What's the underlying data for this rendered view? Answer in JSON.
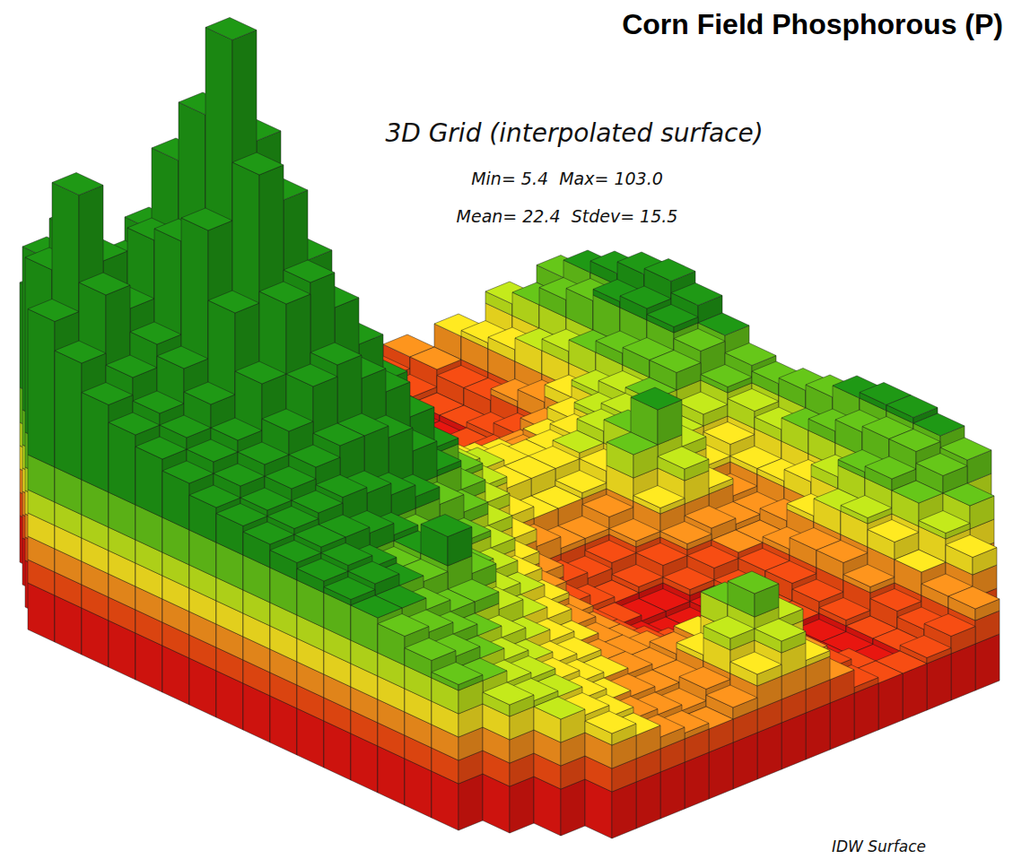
{
  "chart_data": {
    "type": "bar3d",
    "title": "Corn Field Phosphorous (P)",
    "subtitle": "3D Grid (interpolated surface)",
    "annotations": [
      "Min= 5.4  Max= 103.0",
      "Mean= 22.4  Stdev= 15.5",
      "IDW Surface"
    ],
    "zlim": [
      0,
      110
    ],
    "tick_labels": false,
    "color_scale": {
      "breaks": [
        8,
        12,
        16,
        20,
        24,
        30
      ],
      "colors": [
        "#e0150f",
        "#ee4a12",
        "#f5901c",
        "#f7e220",
        "#bde21a",
        "#62c018",
        "#1e9414"
      ]
    },
    "values": [
      [
        null,
        null,
        null,
        48,
        45,
        42,
        40,
        36,
        33,
        30,
        26,
        22,
        17,
        13,
        11,
        10,
        9,
        10,
        12,
        null,
        null,
        null
      ],
      [
        null,
        null,
        58,
        55,
        50,
        46,
        44,
        40,
        35,
        31,
        27,
        22,
        16,
        12,
        10,
        9,
        8,
        9,
        12,
        16,
        null,
        null
      ],
      [
        null,
        60,
        65,
        58,
        55,
        52,
        48,
        42,
        37,
        32,
        27,
        21,
        15,
        11,
        9,
        8,
        7,
        8,
        11,
        17,
        22,
        null
      ],
      [
        55,
        75,
        62,
        60,
        64,
        60,
        54,
        46,
        39,
        33,
        27,
        20,
        14,
        10,
        8,
        7,
        7,
        8,
        11,
        18,
        24,
        27
      ],
      [
        50,
        60,
        56,
        66,
        78,
        72,
        62,
        50,
        41,
        34,
        27,
        20,
        14,
        10,
        8,
        7,
        8,
        9,
        13,
        20,
        27,
        30
      ],
      [
        45,
        48,
        52,
        68,
        88,
        80,
        66,
        52,
        42,
        34,
        27,
        20,
        15,
        11,
        9,
        8,
        9,
        11,
        15,
        22,
        29,
        32
      ],
      [
        42,
        44,
        50,
        72,
        103,
        84,
        68,
        54,
        44,
        36,
        28,
        21,
        17,
        14,
        12,
        11,
        12,
        14,
        18,
        24,
        31,
        34
      ],
      [
        40,
        42,
        46,
        60,
        82,
        76,
        64,
        54,
        45,
        36,
        28,
        22,
        19,
        17,
        16,
        15,
        16,
        18,
        21,
        26,
        32,
        35
      ],
      [
        38,
        40,
        42,
        50,
        62,
        64,
        58,
        50,
        42,
        34,
        27,
        22,
        20,
        19,
        18,
        18,
        19,
        21,
        23,
        27,
        31,
        33
      ],
      [
        36,
        38,
        40,
        44,
        50,
        52,
        48,
        44,
        38,
        31,
        25,
        21,
        19,
        19,
        19,
        20,
        22,
        23,
        24,
        27,
        29,
        30
      ],
      [
        35,
        36,
        38,
        40,
        42,
        42,
        40,
        36,
        31,
        26,
        22,
        18,
        16,
        16,
        17,
        19,
        24,
        21,
        20,
        22,
        25,
        27
      ],
      [
        34,
        35,
        36,
        37,
        36,
        34,
        32,
        29,
        26,
        22,
        18,
        15,
        13,
        13,
        15,
        24,
        30,
        22,
        17,
        19,
        23,
        26
      ],
      [
        33,
        34,
        34,
        33,
        31,
        29,
        27,
        25,
        22,
        18,
        14,
        11,
        10,
        11,
        13,
        17,
        22,
        17,
        14,
        17,
        22,
        27
      ],
      [
        32,
        33,
        31,
        29,
        30,
        26,
        24,
        22,
        19,
        15,
        11,
        9,
        8,
        9,
        11,
        13,
        14,
        13,
        13,
        17,
        24,
        28
      ],
      [
        31,
        32,
        30,
        29,
        35,
        27,
        22,
        20,
        17,
        13,
        9,
        8,
        7,
        7,
        9,
        11,
        12,
        12,
        14,
        19,
        26,
        30
      ],
      [
        30,
        30,
        28,
        26,
        26,
        23,
        20,
        18,
        15,
        12,
        9,
        7,
        6,
        6,
        7,
        9,
        11,
        13,
        17,
        22,
        28,
        31
      ],
      [
        29,
        28,
        26,
        24,
        22,
        20,
        18,
        16,
        14,
        12,
        10,
        8,
        6,
        6,
        7,
        8,
        11,
        15,
        20,
        25,
        29,
        31
      ],
      [
        27,
        26,
        24,
        22,
        20,
        18,
        17,
        15,
        14,
        13,
        11,
        9,
        7,
        6,
        6,
        8,
        10,
        15,
        21,
        26,
        29,
        30
      ],
      [
        25,
        24,
        22,
        21,
        19,
        17,
        16,
        15,
        14,
        15,
        16,
        12,
        9,
        7,
        6,
        7,
        9,
        13,
        19,
        24,
        27,
        28
      ],
      [
        null,
        22,
        21,
        20,
        18,
        16,
        15,
        14,
        14,
        17,
        24,
        16,
        11,
        8,
        7,
        7,
        8,
        11,
        16,
        21,
        24,
        null
      ],
      [
        null,
        null,
        20,
        19,
        17,
        15,
        14,
        13,
        15,
        22,
        28,
        22,
        14,
        10,
        8,
        7,
        8,
        10,
        14,
        19,
        null,
        null
      ],
      [
        null,
        null,
        null,
        18,
        16,
        14,
        13,
        12,
        14,
        18,
        22,
        17,
        12,
        9,
        8,
        8,
        9,
        11,
        14,
        null,
        null,
        null
      ]
    ]
  }
}
